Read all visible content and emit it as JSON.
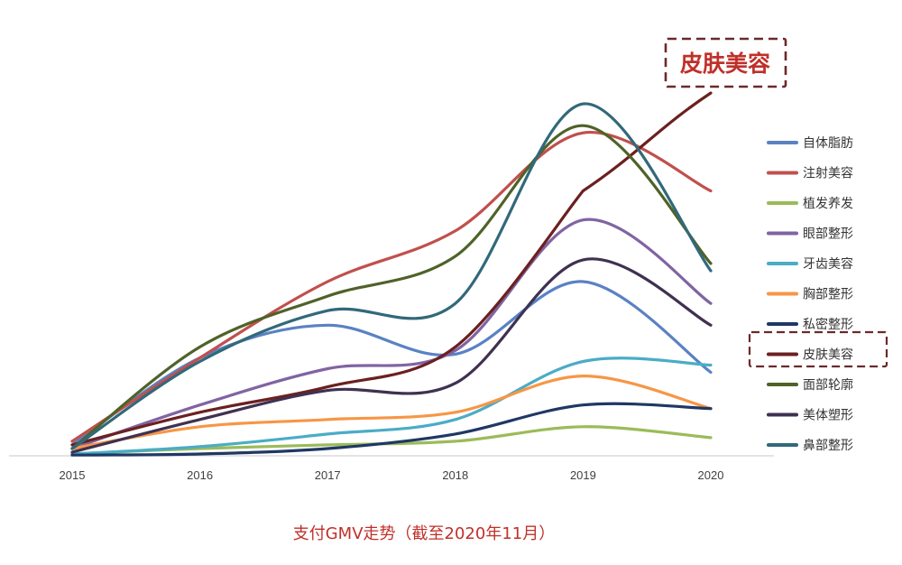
{
  "chart_data": {
    "type": "line",
    "title": "支付GMV走势（截至2020年11月）",
    "xlabel": "",
    "ylabel": "",
    "x": [
      "2015",
      "2016",
      "2017",
      "2018",
      "2019",
      "2020"
    ],
    "ylim": [
      0,
      100
    ],
    "grid": false,
    "legend_position": "right",
    "callout_label": "皮肤美容",
    "highlight_series": "皮肤美容",
    "series": [
      {
        "name": "自体脂肪",
        "color": "#5A82C4",
        "values": [
          3,
          27,
          36,
          28,
          48,
          23
        ]
      },
      {
        "name": "注射美容",
        "color": "#C0504D",
        "values": [
          4,
          27,
          48,
          62,
          89,
          73
        ]
      },
      {
        "name": "植发养发",
        "color": "#9BBB59",
        "values": [
          0.5,
          2,
          3,
          4,
          8,
          5
        ]
      },
      {
        "name": "眼部整形",
        "color": "#8064A2",
        "values": [
          2,
          14,
          24,
          29,
          65,
          42
        ]
      },
      {
        "name": "牙齿美容",
        "color": "#4BACC6",
        "values": [
          0.5,
          2.5,
          6,
          10,
          26,
          25
        ]
      },
      {
        "name": "胸部整形",
        "color": "#F79646",
        "values": [
          2,
          8,
          10,
          12,
          22,
          13
        ]
      },
      {
        "name": "私密整形",
        "color": "#1F3864",
        "values": [
          0.2,
          0.5,
          2,
          6,
          14,
          13
        ]
      },
      {
        "name": "皮肤美容",
        "color": "#6B2020",
        "values": [
          3,
          12,
          19,
          30,
          73,
          100
        ]
      },
      {
        "name": "面部轮廓",
        "color": "#4F6228",
        "values": [
          2,
          30,
          44,
          55,
          91,
          53
        ]
      },
      {
        "name": "美体塑形",
        "color": "#3F3151",
        "values": [
          1,
          10,
          18,
          20,
          54,
          36
        ]
      },
      {
        "name": "鼻部整形",
        "color": "#31697A",
        "values": [
          2,
          26,
          40,
          42,
          97,
          51
        ]
      }
    ]
  }
}
